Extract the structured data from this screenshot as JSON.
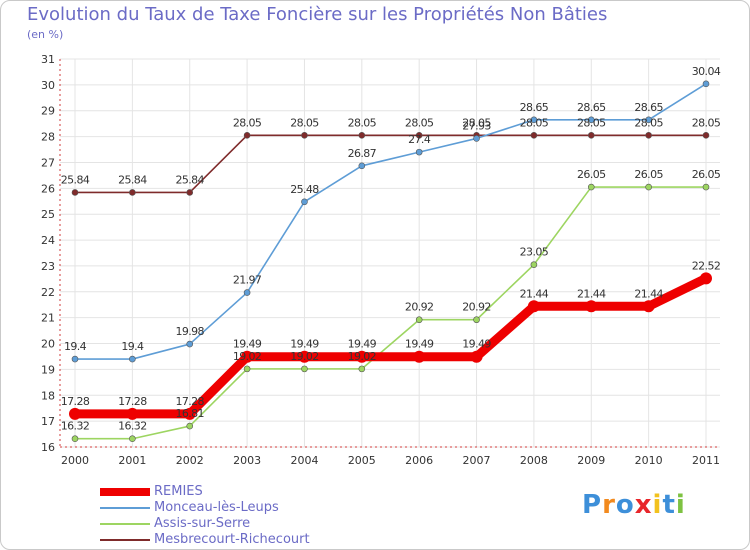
{
  "chart_data": {
    "type": "line",
    "title": "Evolution du Taux de Taxe Foncière sur les Propriétés Non Bâties",
    "ylabel": "(en %)",
    "xlabel": "",
    "categories": [
      "2000",
      "2001",
      "2002",
      "2003",
      "2004",
      "2005",
      "2006",
      "2007",
      "2008",
      "2009",
      "2010",
      "2011"
    ],
    "ylim": [
      16,
      31
    ],
    "yticks": [
      "16",
      "17",
      "18",
      "19",
      "20",
      "21",
      "22",
      "23",
      "24",
      "25",
      "26",
      "27",
      "28",
      "29",
      "30",
      "31"
    ],
    "series": [
      {
        "name": "Mesbrecourt-Richecourt",
        "color": "#7f2b2b",
        "values": [
          25.84,
          25.84,
          25.84,
          28.05,
          28.05,
          28.05,
          28.05,
          28.05,
          28.05,
          28.05,
          28.05,
          28.05
        ],
        "labels": [
          "25.84",
          "25.84",
          "25.84",
          "28.05",
          "28.05",
          "28.05",
          "28.05",
          "28.05",
          "28.05",
          "28.05",
          "28.05",
          "28.05"
        ]
      },
      {
        "name": "Monceau-lès-Leups",
        "color": "#5e9dd6",
        "values": [
          19.4,
          19.4,
          19.98,
          21.97,
          25.48,
          26.87,
          27.4,
          27.93,
          28.65,
          28.65,
          28.65,
          30.04
        ],
        "labels": [
          "19.4",
          "19.4",
          "19.98",
          "21.97",
          "25.48",
          "26.87",
          "27.4",
          "27.93",
          "28.65",
          "28.65",
          "28.65",
          "30.04"
        ]
      },
      {
        "name": "Assis-sur-Serre",
        "color": "#9dd561",
        "values": [
          16.32,
          16.32,
          16.81,
          19.02,
          19.02,
          19.02,
          20.92,
          20.92,
          23.05,
          26.05,
          26.05,
          26.05
        ],
        "labels": [
          "16.32",
          "16.32",
          "16.81",
          "19.02",
          "19.02",
          "19.02",
          "20.92",
          "20.92",
          "23.05",
          "26.05",
          "26.05",
          "26.05"
        ]
      },
      {
        "name": "REMIES",
        "color": "#ee0000",
        "values": [
          17.28,
          17.28,
          17.28,
          19.49,
          19.49,
          19.49,
          19.49,
          19.49,
          21.44,
          21.44,
          21.44,
          22.52
        ],
        "labels": [
          "17.28",
          "17.28",
          "17.28",
          "19.49",
          "19.49",
          "19.49",
          "19.49",
          "19.49",
          "21.44",
          "21.44",
          "21.44",
          "22.52"
        ]
      }
    ],
    "legend": [
      {
        "name": "REMIES",
        "color": "#ee0000"
      },
      {
        "name": "Monceau-lès-Leups",
        "color": "#5e9dd6"
      },
      {
        "name": "Assis-sur-Serre",
        "color": "#9dd561"
      },
      {
        "name": "Mesbrecourt-Richecourt",
        "color": "#7f2b2b"
      }
    ],
    "legend_position": "bottom-left"
  },
  "logo": {
    "letters": [
      "P",
      "r",
      "o",
      "x",
      "i",
      "t",
      "i"
    ],
    "colors": [
      "#3d8fd9",
      "#f28a1e",
      "#3d8fd9",
      "#e8262b",
      "#f2c21e",
      "#3d8fd9",
      "#7ec242"
    ]
  }
}
